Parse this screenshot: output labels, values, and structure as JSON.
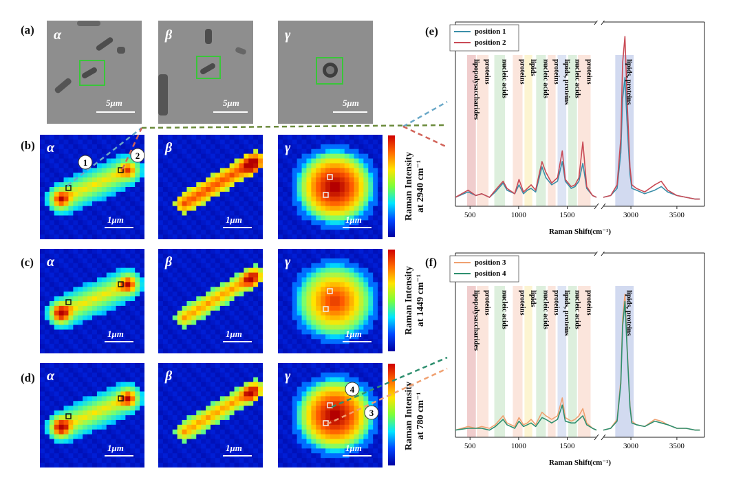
{
  "panel_labels": {
    "a": "(a)",
    "b": "(b)",
    "c": "(c)",
    "d": "(d)",
    "e": "(e)",
    "f": "(f)"
  },
  "greek": {
    "alpha": "α",
    "beta": "β",
    "gamma": "γ"
  },
  "scale_micro": "5μm",
  "scale_map": "1μm",
  "colorbars": {
    "b": [
      "Raman Intensity",
      "at 2940 cm⁻¹"
    ],
    "c": [
      "Raman Intensity",
      "at 1449 cm⁻¹"
    ],
    "d": [
      "Raman Intensity",
      "at 780 cm⁻¹"
    ]
  },
  "markers": {
    "m1": "1",
    "m2": "2",
    "m3": "3",
    "m4": "4"
  },
  "colors": {
    "position1": "#3a8ea8",
    "position2": "#c94a55",
    "position3": "#f0a070",
    "position4": "#2e8f6f",
    "bg_plot": "#ffffff",
    "dash_green": "#6a8a3a"
  },
  "chart_data": [
    {
      "type": "line",
      "panel": "(e)",
      "xlabel": "Raman Shift(cm⁻¹)",
      "x_ticks": [
        500,
        1000,
        1500,
        3000,
        3500
      ],
      "x_break": [
        1800,
        2700
      ],
      "legend_position": "top-left",
      "series": [
        {
          "name": "position 1",
          "color": "#3a8ea8",
          "x": [
            350,
            480,
            560,
            620,
            700,
            760,
            840,
            880,
            960,
            1004,
            1050,
            1090,
            1128,
            1175,
            1240,
            1280,
            1340,
            1400,
            1449,
            1480,
            1540,
            1580,
            1620,
            1660,
            1700,
            1760,
            1800
          ],
          "y": [
            0.05,
            0.08,
            0.06,
            0.07,
            0.05,
            0.08,
            0.13,
            0.09,
            0.07,
            0.12,
            0.07,
            0.09,
            0.1,
            0.08,
            0.22,
            0.16,
            0.12,
            0.14,
            0.25,
            0.14,
            0.1,
            0.11,
            0.14,
            0.24,
            0.1,
            0.06,
            0.05
          ]
        },
        {
          "name": "position 2",
          "color": "#c94a55",
          "x": [
            350,
            480,
            560,
            620,
            700,
            760,
            840,
            880,
            960,
            1004,
            1050,
            1090,
            1128,
            1175,
            1240,
            1280,
            1340,
            1400,
            1449,
            1480,
            1540,
            1580,
            1620,
            1660,
            1700,
            1760,
            1800
          ],
          "y": [
            0.05,
            0.09,
            0.06,
            0.07,
            0.05,
            0.09,
            0.14,
            0.1,
            0.07,
            0.15,
            0.08,
            0.1,
            0.12,
            0.09,
            0.25,
            0.19,
            0.13,
            0.16,
            0.31,
            0.15,
            0.11,
            0.12,
            0.16,
            0.36,
            0.11,
            0.06,
            0.05
          ]
        },
        {
          "name": "position 1",
          "color": "#3a8ea8",
          "x": [
            2700,
            2780,
            2850,
            2890,
            2910,
            2935,
            2960,
            2990,
            3010,
            3060,
            3150,
            3260,
            3330,
            3400,
            3500,
            3600,
            3700,
            3750
          ],
          "y": [
            0.05,
            0.06,
            0.1,
            0.3,
            0.6,
            0.72,
            0.45,
            0.18,
            0.1,
            0.09,
            0.07,
            0.09,
            0.11,
            0.08,
            0.06,
            0.05,
            0.04,
            0.04
          ]
        },
        {
          "name": "position 2",
          "color": "#c94a55",
          "x": [
            2700,
            2780,
            2850,
            2890,
            2910,
            2935,
            2960,
            2990,
            3010,
            3060,
            3150,
            3260,
            3330,
            3400,
            3500,
            3600,
            3700,
            3750
          ],
          "y": [
            0.05,
            0.06,
            0.12,
            0.38,
            0.8,
            0.95,
            0.58,
            0.22,
            0.12,
            0.1,
            0.08,
            0.12,
            0.14,
            0.09,
            0.06,
            0.05,
            0.04,
            0.04
          ]
        }
      ],
      "bands": [
        {
          "label": "lipopolysaccharides",
          "from": 470,
          "to": 560,
          "color": "#d47070"
        },
        {
          "label": "proteins",
          "from": 570,
          "to": 690,
          "color": "#f3b49a"
        },
        {
          "label": "nucleic acids",
          "from": 750,
          "to": 860,
          "color": "#9fd09f"
        },
        {
          "label": "proteins",
          "from": 940,
          "to": 1040,
          "color": "#f3b49a"
        },
        {
          "label": "lipids",
          "from": 1060,
          "to": 1140,
          "color": "#f5e07a"
        },
        {
          "label": "nucleic acids",
          "from": 1180,
          "to": 1280,
          "color": "#9fd09f"
        },
        {
          "label": "proteins",
          "from": 1300,
          "to": 1380,
          "color": "#f3b49a"
        },
        {
          "label": "lipids, proteins",
          "from": 1400,
          "to": 1490,
          "color": "#9fb2e0"
        },
        {
          "label": "nucleic acids",
          "from": 1510,
          "to": 1600,
          "color": "#9fd09f"
        },
        {
          "label": "proteins",
          "from": 1610,
          "to": 1740,
          "color": "#f3b49a"
        },
        {
          "label": "lipids, proteins",
          "from": 2830,
          "to": 3030,
          "color": "#7f96d4"
        }
      ]
    },
    {
      "type": "line",
      "panel": "(f)",
      "xlabel": "Raman Shift(cm⁻¹)",
      "x_ticks": [
        500,
        1000,
        1500,
        3000,
        3500
      ],
      "x_break": [
        1800,
        2700
      ],
      "legend_position": "top-left",
      "series": [
        {
          "name": "position 3",
          "color": "#f0a070",
          "x": [
            350,
            480,
            560,
            620,
            700,
            760,
            840,
            880,
            960,
            1004,
            1050,
            1090,
            1128,
            1175,
            1240,
            1280,
            1340,
            1400,
            1449,
            1480,
            1540,
            1580,
            1620,
            1660,
            1700,
            1760,
            1800
          ],
          "y": [
            0.04,
            0.06,
            0.05,
            0.06,
            0.05,
            0.07,
            0.12,
            0.08,
            0.06,
            0.11,
            0.07,
            0.08,
            0.1,
            0.07,
            0.14,
            0.12,
            0.1,
            0.12,
            0.22,
            0.11,
            0.09,
            0.1,
            0.12,
            0.16,
            0.08,
            0.05,
            0.04
          ]
        },
        {
          "name": "position 4",
          "color": "#2e8f6f",
          "x": [
            350,
            480,
            560,
            620,
            700,
            760,
            840,
            880,
            960,
            1004,
            1050,
            1090,
            1128,
            1175,
            1240,
            1280,
            1340,
            1400,
            1449,
            1480,
            1540,
            1580,
            1620,
            1660,
            1700,
            1760,
            1800
          ],
          "y": [
            0.04,
            0.05,
            0.05,
            0.05,
            0.04,
            0.06,
            0.1,
            0.07,
            0.05,
            0.09,
            0.06,
            0.07,
            0.08,
            0.06,
            0.11,
            0.1,
            0.08,
            0.1,
            0.18,
            0.09,
            0.08,
            0.08,
            0.1,
            0.12,
            0.07,
            0.05,
            0.04
          ]
        },
        {
          "name": "position 3",
          "color": "#f0a070",
          "x": [
            2700,
            2780,
            2850,
            2890,
            2910,
            2935,
            2960,
            2990,
            3010,
            3060,
            3150,
            3260,
            3330,
            3400,
            3500,
            3600,
            3700,
            3750
          ],
          "y": [
            0.04,
            0.05,
            0.1,
            0.32,
            0.66,
            0.8,
            0.5,
            0.18,
            0.09,
            0.07,
            0.06,
            0.1,
            0.09,
            0.07,
            0.05,
            0.05,
            0.04,
            0.04
          ]
        },
        {
          "name": "position 4",
          "color": "#2e8f6f",
          "x": [
            2700,
            2780,
            2850,
            2890,
            2910,
            2935,
            2960,
            2990,
            3010,
            3060,
            3150,
            3260,
            3330,
            3400,
            3500,
            3600,
            3700,
            3750
          ],
          "y": [
            0.04,
            0.05,
            0.09,
            0.3,
            0.62,
            0.76,
            0.48,
            0.17,
            0.08,
            0.07,
            0.06,
            0.09,
            0.08,
            0.07,
            0.05,
            0.05,
            0.04,
            0.04
          ]
        }
      ],
      "bands": [
        {
          "label": "lipopolysaccharides",
          "from": 470,
          "to": 560,
          "color": "#d47070"
        },
        {
          "label": "proteins",
          "from": 570,
          "to": 690,
          "color": "#f3b49a"
        },
        {
          "label": "nucleic acids",
          "from": 750,
          "to": 860,
          "color": "#9fd09f"
        },
        {
          "label": "proteins",
          "from": 940,
          "to": 1040,
          "color": "#f3b49a"
        },
        {
          "label": "lipids",
          "from": 1060,
          "to": 1140,
          "color": "#f5e07a"
        },
        {
          "label": "nucleic acids",
          "from": 1180,
          "to": 1280,
          "color": "#9fd09f"
        },
        {
          "label": "proteins",
          "from": 1300,
          "to": 1380,
          "color": "#f3b49a"
        },
        {
          "label": "lipids, proteins",
          "from": 1400,
          "to": 1490,
          "color": "#9fb2e0"
        },
        {
          "label": "nucleic acids",
          "from": 1510,
          "to": 1600,
          "color": "#9fd09f"
        },
        {
          "label": "proteins",
          "from": 1610,
          "to": 1740,
          "color": "#f3b49a"
        },
        {
          "label": "lipids, proteins",
          "from": 2830,
          "to": 3030,
          "color": "#7f96d4"
        }
      ]
    }
  ]
}
